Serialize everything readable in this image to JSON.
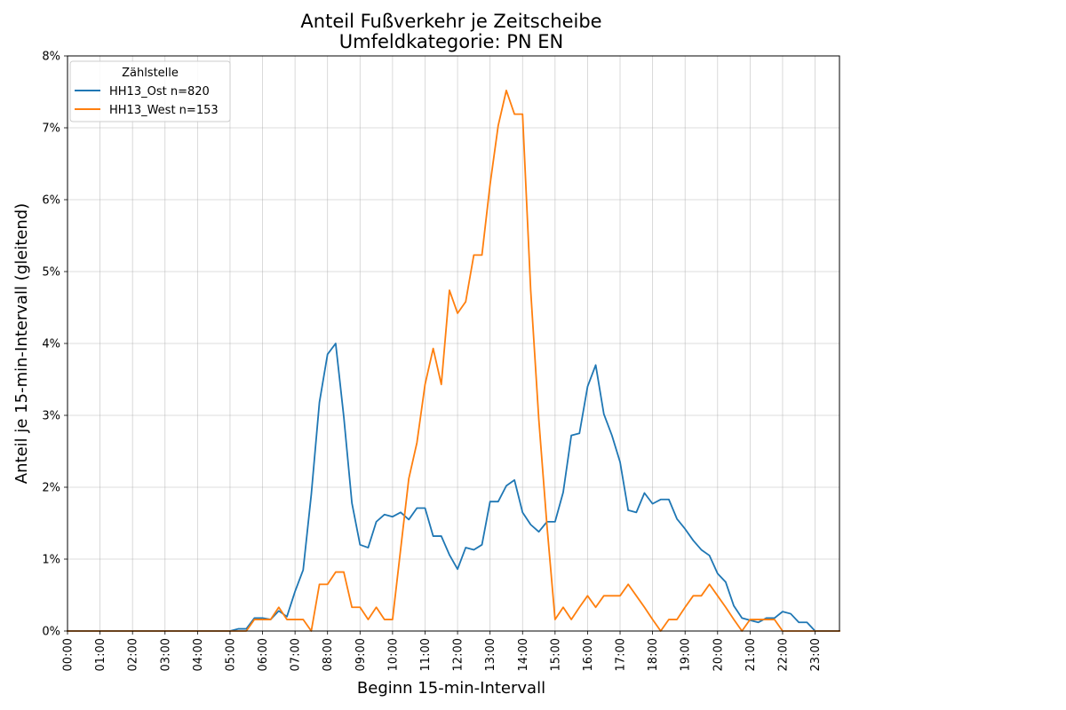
{
  "chart_data": {
    "type": "line",
    "title": "Anteil Fußverkehr je Zeitscheibe",
    "subtitle": "Umfeldkategorie: PN EN",
    "xlabel": "Beginn 15-min-Intervall",
    "ylabel": "Anteil je 15-min-Intervall (gleitend)",
    "x_unit": "15-min slot index (0 = 00:00, 95 = 23:45)",
    "xlim": [
      0,
      95
    ],
    "ylim": [
      0,
      8
    ],
    "y_unit": "percent",
    "grid": true,
    "legend_title": "Zählstelle",
    "legend_position": "top-left",
    "x_ticks": [
      {
        "x": 0,
        "label": "00:00"
      },
      {
        "x": 4,
        "label": "01:00"
      },
      {
        "x": 8,
        "label": "02:00"
      },
      {
        "x": 12,
        "label": "03:00"
      },
      {
        "x": 16,
        "label": "04:00"
      },
      {
        "x": 20,
        "label": "05:00"
      },
      {
        "x": 24,
        "label": "06:00"
      },
      {
        "x": 28,
        "label": "07:00"
      },
      {
        "x": 32,
        "label": "08:00"
      },
      {
        "x": 36,
        "label": "09:00"
      },
      {
        "x": 40,
        "label": "10:00"
      },
      {
        "x": 44,
        "label": "11:00"
      },
      {
        "x": 48,
        "label": "12:00"
      },
      {
        "x": 52,
        "label": "13:00"
      },
      {
        "x": 56,
        "label": "14:00"
      },
      {
        "x": 60,
        "label": "15:00"
      },
      {
        "x": 64,
        "label": "16:00"
      },
      {
        "x": 68,
        "label": "17:00"
      },
      {
        "x": 72,
        "label": "18:00"
      },
      {
        "x": 76,
        "label": "19:00"
      },
      {
        "x": 80,
        "label": "20:00"
      },
      {
        "x": 84,
        "label": "21:00"
      },
      {
        "x": 88,
        "label": "22:00"
      },
      {
        "x": 92,
        "label": "23:00"
      }
    ],
    "y_ticks": [
      {
        "y": 0,
        "label": "0%"
      },
      {
        "y": 1,
        "label": "1%"
      },
      {
        "y": 2,
        "label": "2%"
      },
      {
        "y": 3,
        "label": "3%"
      },
      {
        "y": 4,
        "label": "4%"
      },
      {
        "y": 5,
        "label": "5%"
      },
      {
        "y": 6,
        "label": "6%"
      },
      {
        "y": 7,
        "label": "7%"
      },
      {
        "y": 8,
        "label": "8%"
      }
    ],
    "series": [
      {
        "name": "HH13_Ost n=820",
        "color": "#1f77b4",
        "values": [
          0,
          0,
          0,
          0,
          0,
          0,
          0,
          0,
          0,
          0,
          0,
          0,
          0,
          0,
          0,
          0,
          0,
          0,
          0,
          0,
          0,
          0.03,
          0.03,
          0.18,
          0.18,
          0.16,
          0.28,
          0.2,
          0.55,
          0.85,
          1.9,
          3.18,
          3.85,
          4.0,
          2.98,
          1.78,
          1.2,
          1.16,
          1.52,
          1.62,
          1.59,
          1.65,
          1.55,
          1.71,
          1.71,
          1.32,
          1.32,
          1.06,
          0.86,
          1.16,
          1.13,
          1.2,
          1.8,
          1.8,
          2.02,
          2.1,
          1.65,
          1.48,
          1.38,
          1.52,
          1.52,
          1.93,
          2.72,
          2.75,
          3.4,
          3.7,
          3.02,
          2.72,
          2.35,
          1.68,
          1.65,
          1.92,
          1.77,
          1.83,
          1.83,
          1.56,
          1.42,
          1.26,
          1.13,
          1.05,
          0.8,
          0.68,
          0.35,
          0.18,
          0.15,
          0.12,
          0.18,
          0.18,
          0.27,
          0.24,
          0.12,
          0.12,
          0,
          0,
          0,
          0
        ]
      },
      {
        "name": "HH13_West n=153",
        "color": "#ff7f0e",
        "values": [
          0,
          0,
          0,
          0,
          0,
          0,
          0,
          0,
          0,
          0,
          0,
          0,
          0,
          0,
          0,
          0,
          0,
          0,
          0,
          0,
          0,
          0,
          0,
          0.16,
          0.16,
          0.16,
          0.33,
          0.16,
          0.16,
          0.16,
          0,
          0.65,
          0.65,
          0.82,
          0.82,
          0.33,
          0.33,
          0.16,
          0.33,
          0.16,
          0.16,
          1.14,
          2.12,
          2.62,
          3.43,
          3.93,
          3.43,
          4.74,
          4.42,
          4.58,
          5.23,
          5.23,
          6.21,
          7.03,
          7.52,
          7.19,
          7.19,
          4.74,
          2.94,
          1.47,
          0.16,
          0.33,
          0.16,
          0.33,
          0.49,
          0.33,
          0.49,
          0.49,
          0.49,
          0.65,
          0.49,
          0.33,
          0.16,
          0,
          0.16,
          0.16,
          0.33,
          0.49,
          0.49,
          0.65,
          0.49,
          0.33,
          0.16,
          0,
          0.16,
          0.16,
          0.16,
          0.16,
          0,
          0,
          0,
          0,
          0,
          0,
          0,
          0
        ]
      }
    ]
  }
}
